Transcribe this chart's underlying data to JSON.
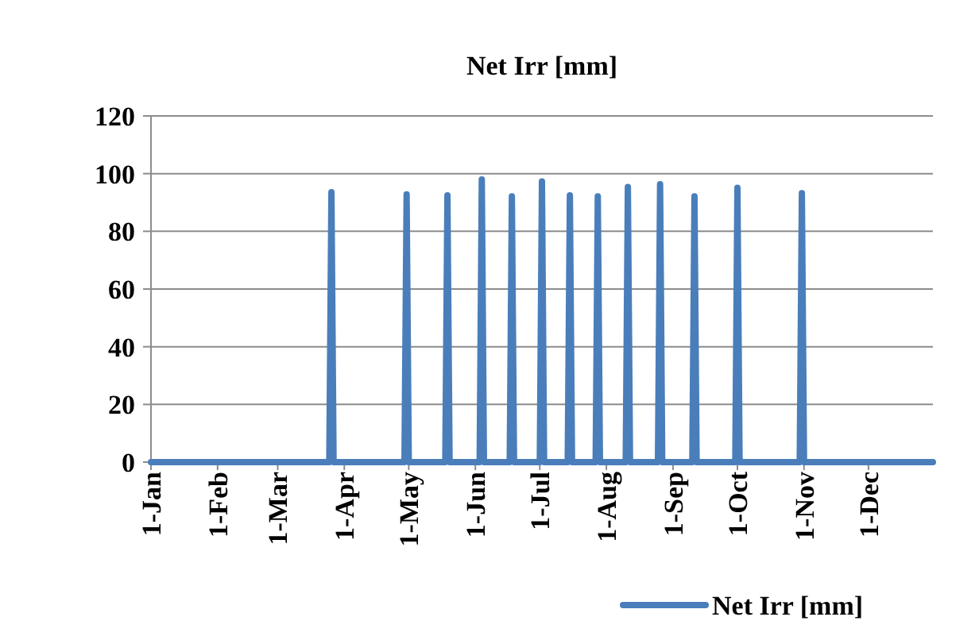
{
  "chart_data": {
    "type": "line",
    "title": "Net Irr [mm]",
    "x": [
      "--01-01",
      "--03-25",
      "--03-26",
      "--03-27",
      "--04-29",
      "--04-30",
      "--05-01",
      "--05-18",
      "--05-19",
      "--05-20",
      "--06-03",
      "--06-04",
      "--06-05",
      "--06-17",
      "--06-18",
      "--06-19",
      "--07-01",
      "--07-02",
      "--07-03",
      "--07-14",
      "--07-15",
      "--07-16",
      "--07-27",
      "--07-28",
      "--07-29",
      "--08-10",
      "--08-11",
      "--08-12",
      "--08-25",
      "--08-26",
      "--08-27",
      "--09-10",
      "--09-11",
      "--09-12",
      "--09-30",
      "--10-01",
      "--10-02",
      "--10-30",
      "--10-31",
      "--11-01",
      "--12-31"
    ],
    "series": [
      {
        "name": "Net Irr [mm]",
        "color": "#4a7ebb",
        "values": [
          0,
          0,
          93.6,
          0,
          0,
          92.8,
          0,
          0,
          92.5,
          0,
          0,
          98,
          0,
          0,
          92.1,
          0,
          0,
          97.3,
          0,
          0,
          92.5,
          0,
          0,
          92.1,
          0,
          0,
          95.4,
          0,
          0,
          96.3,
          0,
          0,
          92.1,
          0,
          0,
          95.1,
          0,
          0,
          93.2,
          0,
          0
        ]
      }
    ],
    "xlim": [
      "--01-01",
      "--12-31"
    ],
    "xticks": [
      {
        "value": "--01-01",
        "label": "1-Jan"
      },
      {
        "value": "--02-01",
        "label": "1-Feb"
      },
      {
        "value": "--03-01",
        "label": "1-Mar"
      },
      {
        "value": "--04-01",
        "label": "1-Apr"
      },
      {
        "value": "--05-01",
        "label": "1-May"
      },
      {
        "value": "--06-01",
        "label": "1-Jun"
      },
      {
        "value": "--07-01",
        "label": "1-Jul"
      },
      {
        "value": "--08-01",
        "label": "1-Aug"
      },
      {
        "value": "--09-01",
        "label": "1-Sep"
      },
      {
        "value": "--10-01",
        "label": "1-Oct"
      },
      {
        "value": "--11-01",
        "label": "1-Nov"
      },
      {
        "value": "--12-01",
        "label": "1-Dec"
      }
    ],
    "ylim": [
      0,
      120
    ],
    "yticks": [
      0,
      20,
      40,
      60,
      80,
      100,
      120
    ],
    "grid": "y",
    "legend": "bottom right",
    "marker": "none",
    "line_style": "solid"
  }
}
